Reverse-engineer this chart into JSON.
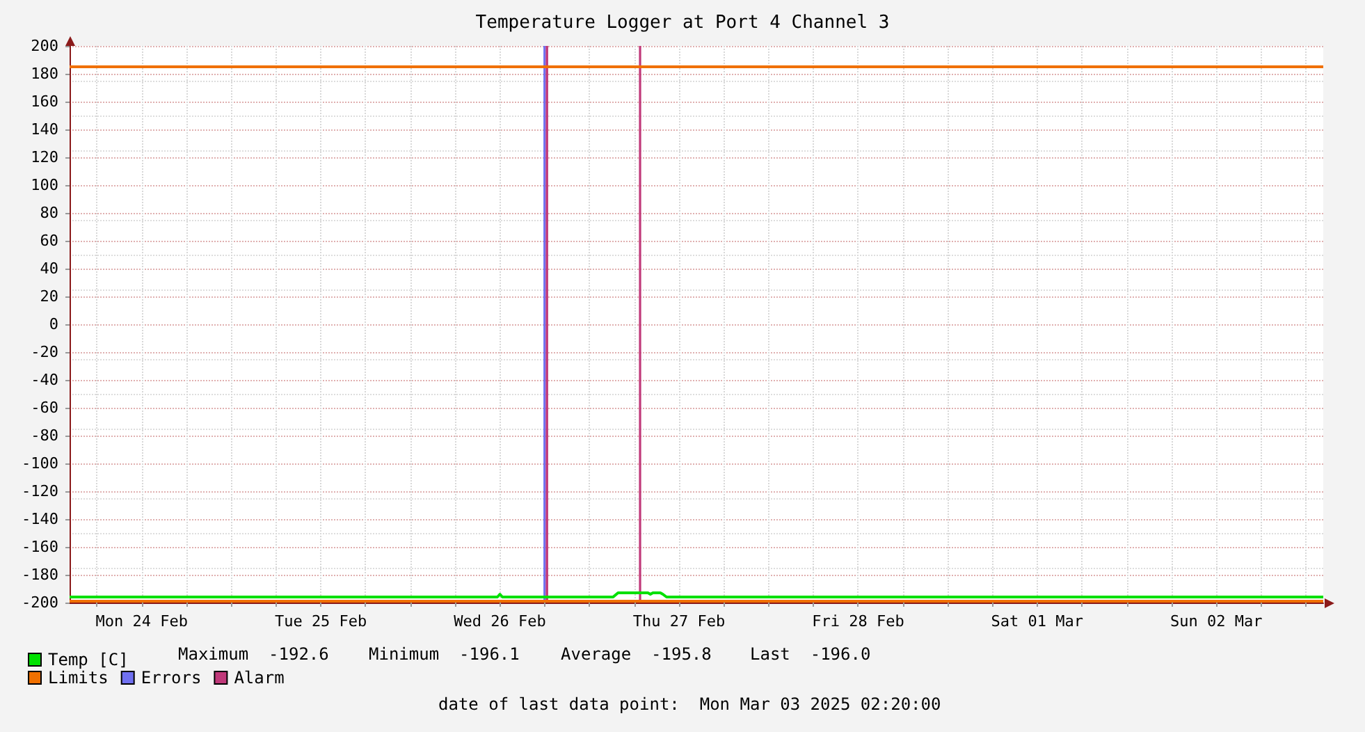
{
  "chart_data": {
    "type": "line",
    "title": "Temperature Logger at Port 4 Channel 3",
    "xlim": [
      "2025-02-24T02:20",
      "2025-03-03T02:20"
    ],
    "xticks": [
      {
        "value": "2025-02-24T06:00",
        "label": null
      },
      {
        "value": "2025-02-24T12:00",
        "label": "Mon 24 Feb"
      },
      {
        "value": "2025-02-24T18:00",
        "label": null
      },
      {
        "value": "2025-02-25T00:00",
        "label": null
      },
      {
        "value": "2025-02-25T06:00",
        "label": null
      },
      {
        "value": "2025-02-25T12:00",
        "label": "Tue 25 Feb"
      },
      {
        "value": "2025-02-25T18:00",
        "label": null
      },
      {
        "value": "2025-02-26T00:00",
        "label": null
      },
      {
        "value": "2025-02-26T06:00",
        "label": null
      },
      {
        "value": "2025-02-26T12:00",
        "label": "Wed 26 Feb"
      },
      {
        "value": "2025-02-26T18:00",
        "label": null
      },
      {
        "value": "2025-02-27T00:00",
        "label": null
      },
      {
        "value": "2025-02-27T06:00",
        "label": null
      },
      {
        "value": "2025-02-27T12:00",
        "label": "Thu 27 Feb"
      },
      {
        "value": "2025-02-27T18:00",
        "label": null
      },
      {
        "value": "2025-02-28T00:00",
        "label": null
      },
      {
        "value": "2025-02-28T06:00",
        "label": null
      },
      {
        "value": "2025-02-28T12:00",
        "label": "Fri 28 Feb"
      },
      {
        "value": "2025-02-28T18:00",
        "label": null
      },
      {
        "value": "2025-03-01T00:00",
        "label": null
      },
      {
        "value": "2025-03-01T06:00",
        "label": null
      },
      {
        "value": "2025-03-01T12:00",
        "label": "Sat 01 Mar"
      },
      {
        "value": "2025-03-01T18:00",
        "label": null
      },
      {
        "value": "2025-03-02T00:00",
        "label": null
      },
      {
        "value": "2025-03-02T06:00",
        "label": null
      },
      {
        "value": "2025-03-02T12:00",
        "label": "Sun 02 Mar"
      },
      {
        "value": "2025-03-02T18:00",
        "label": null
      },
      {
        "value": "2025-03-03T00:00",
        "label": null
      }
    ],
    "ylim": [
      -200,
      200
    ],
    "yticks": [
      -200,
      -180,
      -160,
      -140,
      -120,
      -100,
      -80,
      -60,
      -40,
      -20,
      0,
      20,
      40,
      60,
      80,
      100,
      120,
      140,
      160,
      180,
      200
    ],
    "grid": true,
    "legend": "bottom left",
    "marker": "none",
    "line_style": "solid",
    "series": [
      {
        "name": "Temp [C]",
        "color": "#00e000",
        "x": [
          "2025-02-24T02:20",
          "2025-02-26T11:40",
          "2025-02-26T12:00",
          "2025-02-26T12:20",
          "2025-02-27T03:10",
          "2025-02-27T03:50",
          "2025-02-27T07:50",
          "2025-02-27T08:10",
          "2025-02-27T08:30",
          "2025-02-27T09:00",
          "2025-02-27T09:30",
          "2025-02-27T09:50",
          "2025-02-27T10:20",
          "2025-03-03T02:20"
        ],
        "values": [
          -196,
          -196,
          -194,
          -196,
          -196,
          -193,
          -193,
          -194,
          -193,
          -193,
          -193,
          -194,
          -196,
          -196
        ]
      }
    ],
    "ref_lines": [
      {
        "axis": "y",
        "value": 185,
        "label": "Limits",
        "color": "#f07000"
      },
      {
        "axis": "y",
        "value": -199,
        "color": "#f07000"
      }
    ],
    "bands": [
      {
        "axis": "x",
        "from": "2025-02-26T17:50",
        "to": "2025-02-26T18:08",
        "label": "Errors",
        "color": "#7070f0"
      },
      {
        "axis": "x",
        "from": "2025-02-26T18:08",
        "to": "2025-02-26T18:28",
        "label": "Alarm",
        "color": "#c0397a"
      },
      {
        "axis": "x",
        "from": "2025-02-27T06:38",
        "to": "2025-02-27T06:56",
        "color": "#c0397a"
      }
    ],
    "annotations": [
      "Maximum  -192.6",
      "Minimum  -196.1",
      "Average  -195.8",
      "Last  -196.0",
      "date of last data point:  Mon Mar 03 2025 02:20:00"
    ]
  }
}
